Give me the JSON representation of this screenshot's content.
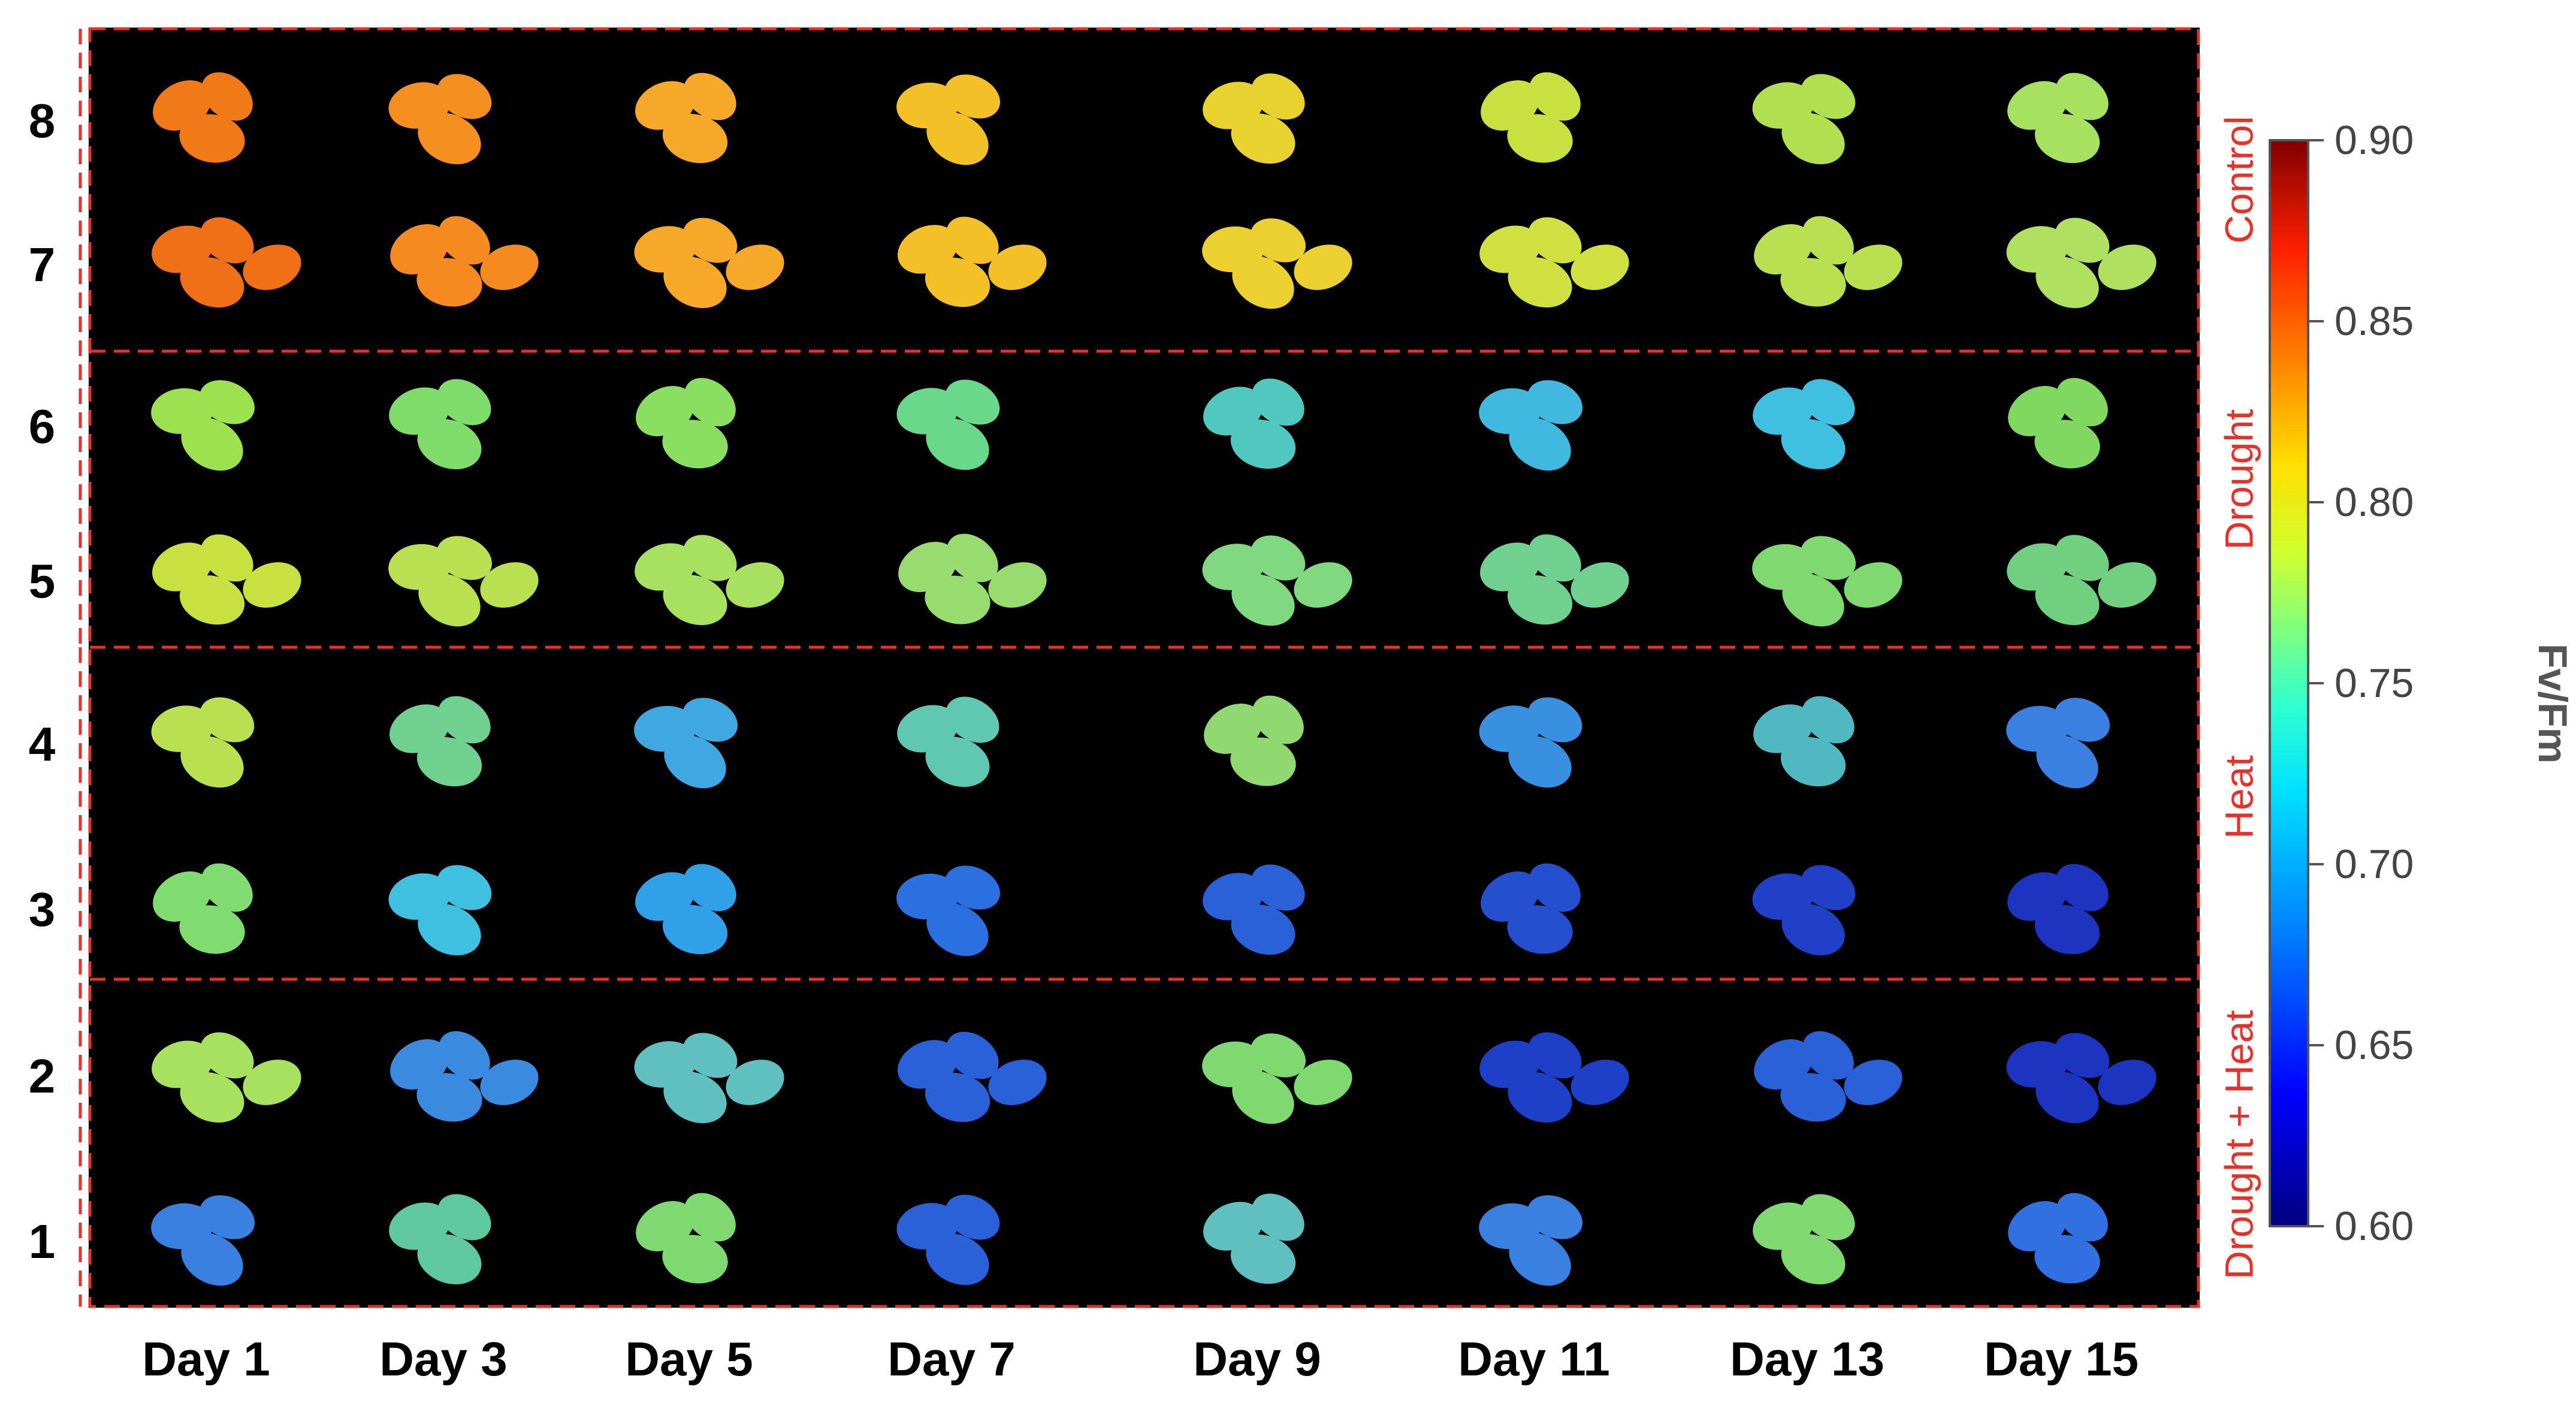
{
  "rows": [
    "8",
    "7",
    "6",
    "5",
    "4",
    "3",
    "2",
    "1"
  ],
  "days": [
    "Day 1",
    "Day 3",
    "Day 5",
    "Day 7",
    "Day 9",
    "Day 11",
    "Day 13",
    "Day 15"
  ],
  "groups": [
    "Control",
    "Drought",
    "Heat",
    "Drought + Heat"
  ],
  "colorbar": {
    "title": "Fv/Fm",
    "ticks": [
      "0.90",
      "0.85",
      "0.80",
      "0.75",
      "0.70",
      "0.65",
      "0.60"
    ]
  },
  "colors": {
    "background": "#000000",
    "dashed_frame": "#e8302a",
    "group_label": "#e8302a",
    "control_leaf": "#f08a20",
    "drought_leaf": "#7fdc6a",
    "heat_leaf": "#3fa8e0",
    "drought_heat_leaf": "#2a5fd6"
  }
}
